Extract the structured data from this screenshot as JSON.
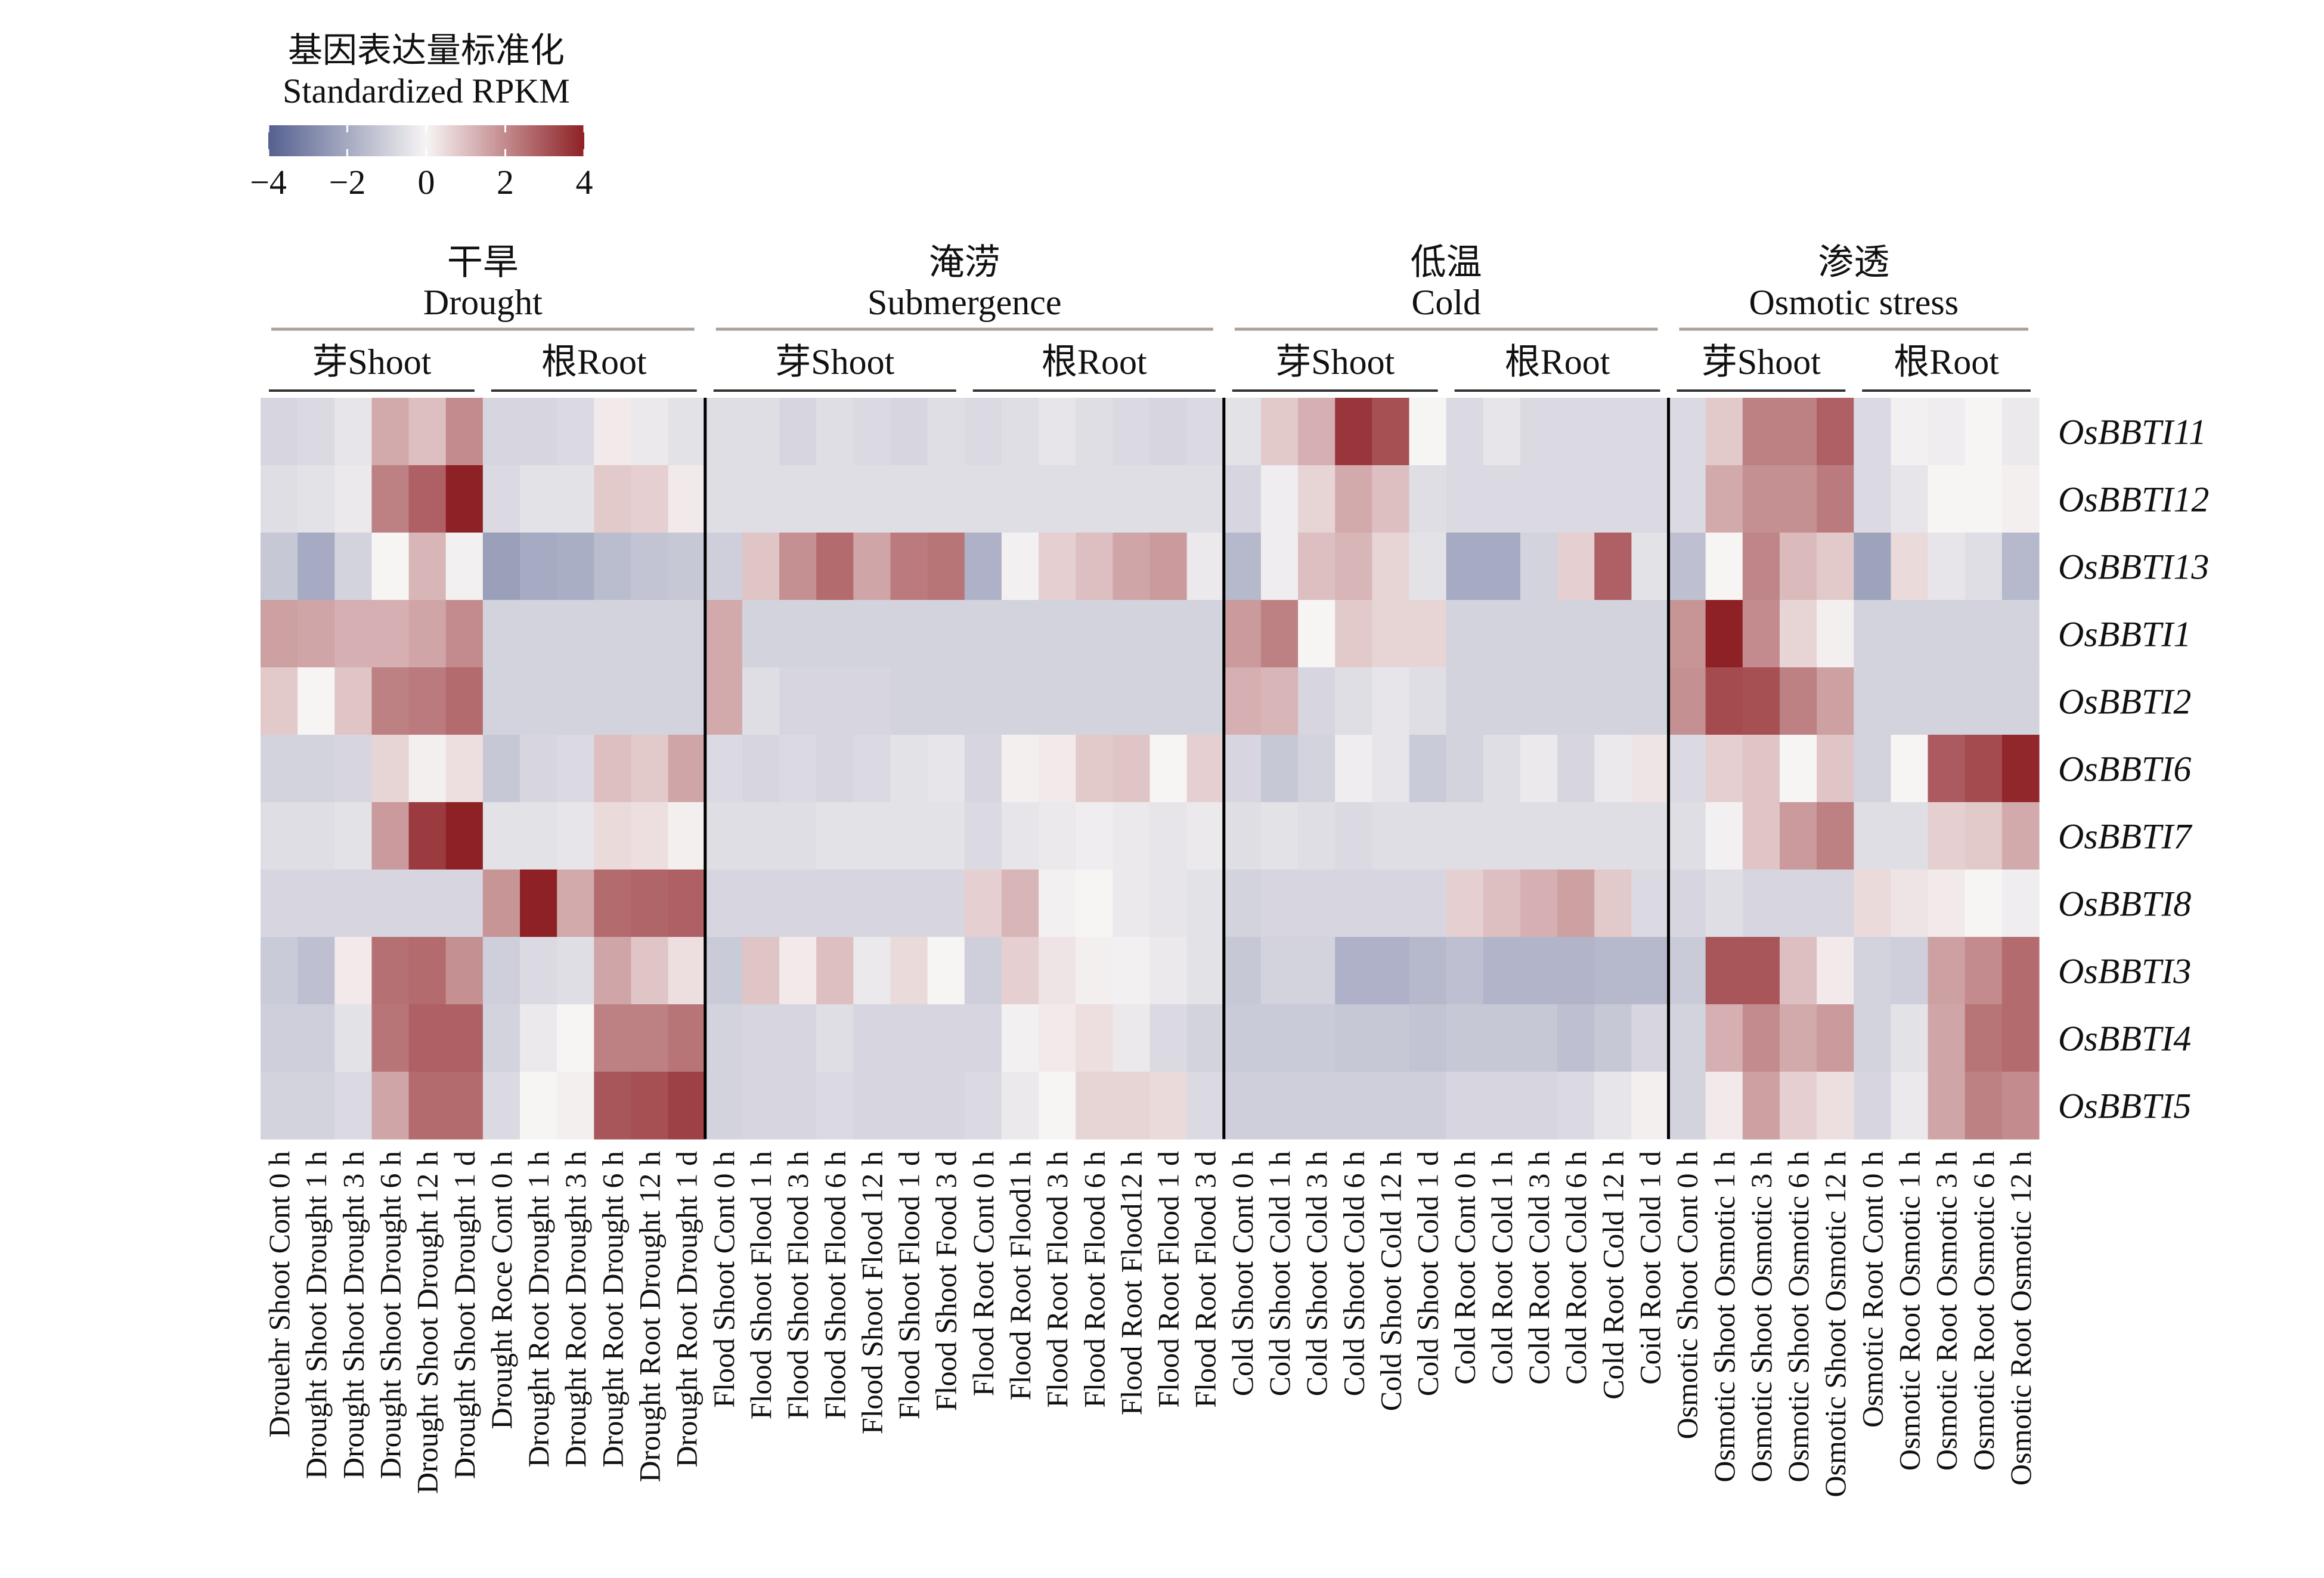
{
  "legend": {
    "title_cn": "基因表达量标准化",
    "title_en": "Standardized RPKM",
    "ticks": [
      "−4",
      "−2",
      "0",
      "2",
      "4"
    ],
    "tick_values": [
      -4,
      -2,
      0,
      2,
      4
    ],
    "colors": {
      "low": "#55608f",
      "mid": "#f7f4f4",
      "high": "#8e2126"
    }
  },
  "groups": [
    {
      "cn": "干旱",
      "en": "Drought",
      "shoot_label": "芽Shoot",
      "root_label": "根Root"
    },
    {
      "cn": "淹涝",
      "en": "Submergence",
      "shoot_label": "芽Shoot",
      "root_label": "根Root"
    },
    {
      "cn": "低温",
      "en": "Cold",
      "shoot_label": "芽Shoot",
      "root_label": "根Root"
    },
    {
      "cn": "渗透",
      "en": "Osmotic stress",
      "shoot_label": "芽Shoot",
      "root_label": "根Root"
    }
  ],
  "chart_data": {
    "type": "heatmap",
    "value_range": [
      -4,
      4
    ],
    "rows": [
      "OsBBTI11",
      "OsBBTI12",
      "OsBBTI13",
      "OsBBTI1",
      "OsBBTI2",
      "OsBBTI6",
      "OsBBTI7",
      "OsBBTI8",
      "OsBBTI3",
      "OsBBTI4",
      "OsBBTI5"
    ],
    "columns": [
      "Drouehr Shoot Cont 0 h",
      "Drought Shoot Drought 1 h",
      "Drought Shoot Drought 3 h",
      "Drought Shoot Drought 6 h",
      "Drought Shoot Drought 12 h",
      "Drought Shoot Drought 1 d",
      "Drought Roce Cont 0 h",
      "Drought Root Drought 1 h",
      "Drought Root Drought 3 h",
      "Drought Root Drought 6 h",
      "Drought Root Drought 12 h",
      "Drought Root Drought 1 d",
      "Flood Shoot Cont 0 h",
      "Flood Shoot Flood 1 h",
      "Flood Shoot Flood 3 h",
      "Flood Shoot Flood 6 h",
      "Flood Shoot Flood 12 h",
      "Flood Shoot Flood 1 d",
      "Flood Shoot Food 3 d",
      "Flood Root Cont 0 h",
      "Flood Root Flood1 h",
      "Flood Root Flood 3 h",
      "Flood Root Flood 6 h",
      "Flood Root Flood12 h",
      "Flood Root Flood 1 d",
      "Flood Root Flood 3 d",
      "Cold Shoot Cont 0 h",
      "Cold Shoot Cold 1 h",
      "Cold Shoot Cold 3 h",
      "Cold Shoot Cold 6 h",
      "Cold Shoot Cold 12 h",
      "Cold Shoot Cold 1 d",
      "Cold Root Cont 0 h",
      "Cold Root Cold 1 h",
      "Cold Root Cold 3 h",
      "Cold Root Cold 6 h",
      "Cold Root Cold 12 h",
      "Coid Root Cold 1 d",
      "Osmotic Shoot Cont 0 h",
      "Osmotic Shoot Osmotic 1 h",
      "Osmotic Shoot Osmotic 3 h",
      "Osmotic Shoot Osmotic 6 h",
      "Osmotic Shoot Osmotic 12 h",
      "Osmotic Root Cont 0 h",
      "Osmotic Root Osmotic 1 h",
      "Osmotic Root Osmotic 3 h",
      "Osmotic Root Osmotic 6 h",
      "Osmotic Root Osmotic 12 h"
    ],
    "column_groups": [
      6,
      6,
      7,
      7,
      6,
      6,
      5,
      5
    ],
    "values": [
      [
        -0.8,
        -0.7,
        -0.4,
        1.4,
        1.0,
        2.0,
        -0.8,
        -0.8,
        -0.7,
        0.2,
        -0.3,
        -0.5,
        -0.6,
        -0.6,
        -0.8,
        -0.6,
        -0.7,
        -0.8,
        -0.6,
        -0.7,
        -0.6,
        -0.4,
        -0.6,
        -0.7,
        -0.8,
        -0.7,
        -0.5,
        0.8,
        1.3,
        3.6,
        3.1,
        0.0,
        -0.7,
        -0.4,
        -0.7,
        -0.7,
        -0.7,
        -0.7,
        -0.7,
        0.8,
        2.2,
        2.2,
        2.8,
        -0.7,
        -0.1,
        -0.2,
        0.0,
        -0.3
      ],
      [
        -0.6,
        -0.5,
        -0.3,
        2.2,
        2.8,
        4.2,
        -0.7,
        -0.5,
        -0.5,
        0.8,
        0.7,
        0.2,
        -0.6,
        -0.6,
        -0.6,
        -0.6,
        -0.6,
        -0.6,
        -0.6,
        -0.6,
        -0.6,
        -0.6,
        -0.6,
        -0.6,
        -0.6,
        -0.6,
        -0.8,
        -0.2,
        0.6,
        1.4,
        1.0,
        -0.6,
        -0.7,
        -0.7,
        -0.7,
        -0.7,
        -0.7,
        -0.7,
        -0.7,
        1.4,
        1.9,
        1.9,
        2.3,
        -0.7,
        -0.4,
        0.0,
        0.0,
        0.1
      ],
      [
        -1.2,
        -2.0,
        -0.9,
        0.0,
        1.2,
        -0.1,
        -2.3,
        -2.0,
        -1.9,
        -1.5,
        -1.3,
        -1.2,
        -1.0,
        0.9,
        1.9,
        2.6,
        1.5,
        2.3,
        2.4,
        -1.8,
        -0.1,
        0.7,
        1.0,
        1.5,
        1.7,
        -0.3,
        -1.6,
        -0.2,
        1.0,
        1.2,
        0.6,
        -0.5,
        -2.0,
        -2.0,
        -0.9,
        0.7,
        2.8,
        -0.5,
        -1.4,
        0.0,
        2.1,
        1.1,
        0.8,
        -2.2,
        0.5,
        -0.4,
        -0.6,
        -1.6
      ],
      [
        1.6,
        1.5,
        1.3,
        1.3,
        1.5,
        2.0,
        -0.9,
        -0.9,
        -0.9,
        -0.9,
        -0.9,
        -0.9,
        1.4,
        -0.9,
        -0.9,
        -0.9,
        -0.9,
        -0.9,
        -0.9,
        -0.9,
        -0.9,
        -0.9,
        -0.9,
        -0.9,
        -0.9,
        -0.9,
        1.7,
        2.2,
        0.0,
        0.8,
        0.6,
        0.6,
        -0.9,
        -0.9,
        -0.9,
        -0.9,
        -0.9,
        -0.9,
        1.8,
        4.0,
        2.0,
        0.6,
        0.1,
        -0.9,
        -0.9,
        -0.9,
        -0.9,
        -0.9
      ],
      [
        0.8,
        0.0,
        0.9,
        2.2,
        2.3,
        2.6,
        -0.9,
        -0.9,
        -0.9,
        -0.9,
        -0.9,
        -0.9,
        1.4,
        -0.6,
        -0.8,
        -0.8,
        -0.8,
        -0.9,
        -0.9,
        -0.9,
        -0.9,
        -0.9,
        -0.9,
        -0.9,
        -0.9,
        -0.9,
        1.3,
        1.2,
        -0.8,
        -0.6,
        -0.4,
        -0.6,
        -0.9,
        -0.9,
        -0.9,
        -0.9,
        -0.9,
        -0.9,
        1.9,
        3.2,
        3.1,
        2.2,
        1.6,
        -0.9,
        -0.9,
        -0.9,
        -0.9,
        -0.9
      ],
      [
        -0.9,
        -0.9,
        -0.8,
        0.6,
        0.1,
        0.4,
        -1.2,
        -0.8,
        -0.7,
        1.0,
        0.8,
        1.5,
        -0.7,
        -0.8,
        -0.7,
        -0.8,
        -0.7,
        -0.5,
        -0.4,
        -0.8,
        0.1,
        0.2,
        0.8,
        0.9,
        0.0,
        0.7,
        -0.8,
        -1.2,
        -0.9,
        -0.2,
        -0.4,
        -1.1,
        -0.9,
        -0.6,
        -0.3,
        -0.8,
        -0.3,
        0.3,
        -0.7,
        0.7,
        0.9,
        0.0,
        0.9,
        -0.9,
        0.0,
        2.9,
        3.2,
        3.9
      ],
      [
        -0.6,
        -0.6,
        -0.5,
        1.7,
        3.5,
        4.0,
        -0.5,
        -0.5,
        -0.4,
        0.5,
        0.4,
        0.1,
        -0.6,
        -0.6,
        -0.6,
        -0.5,
        -0.5,
        -0.5,
        -0.5,
        -0.7,
        -0.4,
        -0.3,
        -0.2,
        -0.3,
        -0.4,
        -0.3,
        -0.6,
        -0.5,
        -0.6,
        -0.7,
        -0.6,
        -0.6,
        -0.6,
        -0.6,
        -0.6,
        -0.6,
        -0.6,
        -0.6,
        -0.6,
        -0.1,
        0.9,
        1.7,
        2.2,
        -0.6,
        -0.6,
        0.7,
        0.8,
        1.4
      ],
      [
        -0.8,
        -0.8,
        -0.8,
        -0.8,
        -0.8,
        -0.8,
        1.8,
        4.0,
        1.4,
        2.6,
        2.7,
        2.8,
        -0.8,
        -0.8,
        -0.8,
        -0.8,
        -0.8,
        -0.8,
        -0.8,
        0.7,
        1.2,
        -0.1,
        0.0,
        -0.3,
        -0.4,
        -0.5,
        -0.9,
        -0.8,
        -0.8,
        -0.8,
        -0.8,
        -0.8,
        0.7,
        1.0,
        1.3,
        1.6,
        0.8,
        -0.7,
        -0.8,
        -0.6,
        -0.8,
        -0.8,
        -0.8,
        0.5,
        0.3,
        0.2,
        0.0,
        -0.2
      ],
      [
        -1.1,
        -1.4,
        0.2,
        2.5,
        2.6,
        1.9,
        -1.0,
        -0.7,
        -0.6,
        1.5,
        0.9,
        0.4,
        -1.1,
        0.9,
        0.2,
        1.0,
        -0.3,
        0.5,
        0.0,
        -1.0,
        0.7,
        0.3,
        0.1,
        -0.1,
        -0.3,
        -0.5,
        -1.2,
        -0.9,
        -0.9,
        -1.8,
        -1.8,
        -1.6,
        -1.4,
        -1.7,
        -1.7,
        -1.7,
        -1.6,
        -1.6,
        -1.1,
        3.0,
        3.0,
        1.0,
        0.2,
        -0.9,
        -1.0,
        1.6,
        2.0,
        2.6
      ],
      [
        -1.0,
        -1.0,
        -0.5,
        2.4,
        2.8,
        2.8,
        -0.9,
        -0.3,
        0.0,
        2.2,
        2.2,
        2.4,
        -0.9,
        -0.8,
        -0.8,
        -0.6,
        -0.8,
        -0.8,
        -0.8,
        -0.8,
        -0.1,
        0.2,
        0.4,
        -0.3,
        -0.7,
        -0.9,
        -1.1,
        -1.1,
        -1.1,
        -1.2,
        -1.2,
        -1.3,
        -1.2,
        -1.2,
        -1.2,
        -1.4,
        -1.2,
        -0.8,
        -0.9,
        1.3,
        2.0,
        1.4,
        1.7,
        -0.9,
        -0.5,
        1.5,
        2.4,
        2.6
      ],
      [
        -0.9,
        -0.9,
        -0.7,
        1.5,
        2.6,
        2.6,
        -0.7,
        0.0,
        0.1,
        3.0,
        3.1,
        3.4,
        -0.9,
        -0.8,
        -0.8,
        -0.7,
        -0.8,
        -0.8,
        -0.8,
        -0.7,
        -0.3,
        0.0,
        0.6,
        0.6,
        0.5,
        -0.7,
        -1.0,
        -1.0,
        -1.0,
        -1.0,
        -1.0,
        -1.0,
        -0.8,
        -0.8,
        -0.8,
        -0.7,
        -0.4,
        0.1,
        -0.9,
        0.2,
        1.6,
        0.7,
        0.4,
        -0.8,
        -0.3,
        1.5,
        2.2,
        2.0
      ]
    ]
  }
}
